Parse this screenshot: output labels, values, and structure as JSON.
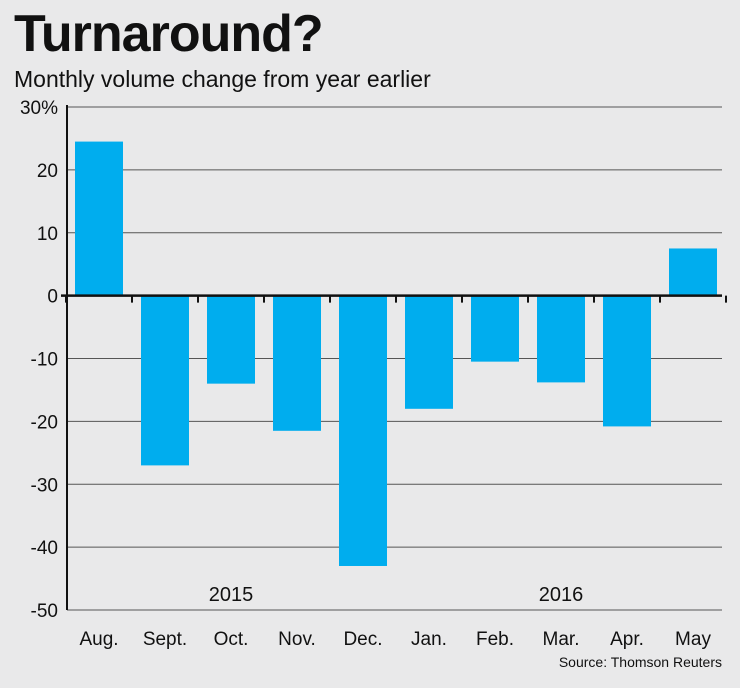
{
  "chart_data": {
    "type": "bar",
    "title": "Turnaround?",
    "subtitle": "Monthly volume change from year earlier",
    "categories": [
      "Aug.",
      "Sept.",
      "Oct.",
      "Nov.",
      "Dec.",
      "Jan.",
      "Feb.",
      "Mar.",
      "Apr.",
      "May"
    ],
    "values": [
      24.5,
      -27.0,
      -14.0,
      -21.5,
      -43.0,
      -18.0,
      -10.5,
      -13.8,
      -20.8,
      7.5
    ],
    "ylim": [
      -50,
      30
    ],
    "yticks": [
      30,
      20,
      10,
      0,
      -10,
      -20,
      -30,
      -40,
      -50
    ],
    "ytick_labels": [
      "30%",
      "20",
      "10",
      "0",
      "-10",
      "-20",
      "-30",
      "-40",
      "-50"
    ],
    "year_labels": [
      {
        "text": "2015",
        "category_index": 2
      },
      {
        "text": "2016",
        "category_index": 7
      }
    ],
    "grid": true,
    "bar_color": "#00adee",
    "source": "Source: Thomson Reuters"
  }
}
